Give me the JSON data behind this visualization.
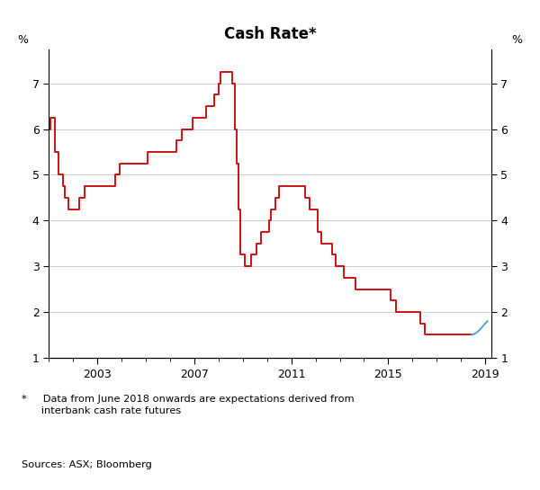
{
  "title": "Cash Rate*",
  "ylabel_left": "%",
  "ylabel_right": "%",
  "ylim": [
    1,
    7.75
  ],
  "yticks": [
    1,
    2,
    3,
    4,
    5,
    6,
    7
  ],
  "xlim_start": 2001.0,
  "xlim_end": 2019.25,
  "xticks": [
    2003,
    2007,
    2011,
    2015,
    2019
  ],
  "footnote1": "*     Data from June 2018 onwards are expectations derived from\n      interbank cash rate futures",
  "footnote2": "Sources: ASX; Bloomberg",
  "red_color": "#CC0000",
  "blue_color": "#5599CC",
  "grid_color": "#CCCCCC",
  "background_color": "#FFFFFF",
  "red_data": [
    [
      2001.0,
      6.0
    ],
    [
      2001.083,
      6.25
    ],
    [
      2001.167,
      6.25
    ],
    [
      2001.25,
      5.5
    ],
    [
      2001.417,
      5.0
    ],
    [
      2001.5,
      5.0
    ],
    [
      2001.583,
      4.75
    ],
    [
      2001.667,
      4.5
    ],
    [
      2001.75,
      4.5
    ],
    [
      2001.833,
      4.25
    ],
    [
      2001.917,
      4.25
    ],
    [
      2002.0,
      4.25
    ],
    [
      2002.083,
      4.25
    ],
    [
      2002.25,
      4.5
    ],
    [
      2002.5,
      4.75
    ],
    [
      2002.833,
      4.75
    ],
    [
      2002.917,
      4.75
    ],
    [
      2003.0,
      4.75
    ],
    [
      2003.5,
      4.75
    ],
    [
      2003.583,
      4.75
    ],
    [
      2003.75,
      5.0
    ],
    [
      2003.917,
      5.25
    ],
    [
      2004.0,
      5.25
    ],
    [
      2004.167,
      5.25
    ],
    [
      2004.333,
      5.25
    ],
    [
      2004.583,
      5.25
    ],
    [
      2004.75,
      5.25
    ],
    [
      2004.917,
      5.25
    ],
    [
      2005.083,
      5.5
    ],
    [
      2005.25,
      5.5
    ],
    [
      2005.5,
      5.5
    ],
    [
      2005.75,
      5.5
    ],
    [
      2005.917,
      5.5
    ],
    [
      2006.0,
      5.5
    ],
    [
      2006.083,
      5.5
    ],
    [
      2006.25,
      5.75
    ],
    [
      2006.5,
      6.0
    ],
    [
      2006.667,
      6.0
    ],
    [
      2006.833,
      6.0
    ],
    [
      2006.917,
      6.25
    ],
    [
      2007.0,
      6.25
    ],
    [
      2007.083,
      6.25
    ],
    [
      2007.167,
      6.25
    ],
    [
      2007.333,
      6.25
    ],
    [
      2007.5,
      6.5
    ],
    [
      2007.667,
      6.5
    ],
    [
      2007.833,
      6.75
    ],
    [
      2007.917,
      6.75
    ],
    [
      2008.0,
      7.0
    ],
    [
      2008.083,
      7.25
    ],
    [
      2008.167,
      7.25
    ],
    [
      2008.25,
      7.25
    ],
    [
      2008.333,
      7.25
    ],
    [
      2008.5,
      7.25
    ],
    [
      2008.583,
      7.0
    ],
    [
      2008.667,
      6.0
    ],
    [
      2008.75,
      5.25
    ],
    [
      2008.833,
      4.25
    ],
    [
      2008.917,
      3.25
    ],
    [
      2009.0,
      3.25
    ],
    [
      2009.083,
      3.0
    ],
    [
      2009.167,
      3.0
    ],
    [
      2009.25,
      3.0
    ],
    [
      2009.333,
      3.25
    ],
    [
      2009.583,
      3.5
    ],
    [
      2009.75,
      3.75
    ],
    [
      2009.833,
      3.75
    ],
    [
      2009.917,
      3.75
    ],
    [
      2010.0,
      3.75
    ],
    [
      2010.083,
      4.0
    ],
    [
      2010.167,
      4.25
    ],
    [
      2010.25,
      4.25
    ],
    [
      2010.333,
      4.5
    ],
    [
      2010.417,
      4.5
    ],
    [
      2010.5,
      4.75
    ],
    [
      2010.75,
      4.75
    ],
    [
      2010.833,
      4.75
    ],
    [
      2010.917,
      4.75
    ],
    [
      2011.0,
      4.75
    ],
    [
      2011.083,
      4.75
    ],
    [
      2011.25,
      4.75
    ],
    [
      2011.333,
      4.75
    ],
    [
      2011.5,
      4.75
    ],
    [
      2011.583,
      4.5
    ],
    [
      2011.75,
      4.25
    ],
    [
      2011.917,
      4.25
    ],
    [
      2012.0,
      4.25
    ],
    [
      2012.083,
      3.75
    ],
    [
      2012.25,
      3.5
    ],
    [
      2012.333,
      3.5
    ],
    [
      2012.417,
      3.5
    ],
    [
      2012.5,
      3.5
    ],
    [
      2012.667,
      3.25
    ],
    [
      2012.833,
      3.0
    ],
    [
      2012.917,
      3.0
    ],
    [
      2013.0,
      3.0
    ],
    [
      2013.083,
      3.0
    ],
    [
      2013.167,
      2.75
    ],
    [
      2013.417,
      2.75
    ],
    [
      2013.5,
      2.75
    ],
    [
      2013.583,
      2.75
    ],
    [
      2013.667,
      2.5
    ],
    [
      2013.75,
      2.5
    ],
    [
      2013.833,
      2.5
    ],
    [
      2013.917,
      2.5
    ],
    [
      2014.0,
      2.5
    ],
    [
      2014.083,
      2.5
    ],
    [
      2014.167,
      2.5
    ],
    [
      2014.25,
      2.5
    ],
    [
      2014.333,
      2.5
    ],
    [
      2014.417,
      2.5
    ],
    [
      2014.5,
      2.5
    ],
    [
      2014.583,
      2.5
    ],
    [
      2014.667,
      2.5
    ],
    [
      2014.75,
      2.5
    ],
    [
      2014.833,
      2.5
    ],
    [
      2014.917,
      2.5
    ],
    [
      2015.0,
      2.5
    ],
    [
      2015.083,
      2.25
    ],
    [
      2015.167,
      2.25
    ],
    [
      2015.25,
      2.25
    ],
    [
      2015.333,
      2.0
    ],
    [
      2015.417,
      2.0
    ],
    [
      2015.5,
      2.0
    ],
    [
      2015.583,
      2.0
    ],
    [
      2015.667,
      2.0
    ],
    [
      2015.75,
      2.0
    ],
    [
      2015.833,
      2.0
    ],
    [
      2015.917,
      2.0
    ],
    [
      2016.0,
      2.0
    ],
    [
      2016.083,
      2.0
    ],
    [
      2016.167,
      2.0
    ],
    [
      2016.25,
      2.0
    ],
    [
      2016.333,
      1.75
    ],
    [
      2016.417,
      1.75
    ],
    [
      2016.5,
      1.5
    ],
    [
      2016.583,
      1.5
    ],
    [
      2016.667,
      1.5
    ],
    [
      2016.75,
      1.5
    ],
    [
      2016.833,
      1.5
    ],
    [
      2016.917,
      1.5
    ],
    [
      2017.0,
      1.5
    ],
    [
      2017.083,
      1.5
    ],
    [
      2017.167,
      1.5
    ],
    [
      2017.25,
      1.5
    ],
    [
      2017.333,
      1.5
    ],
    [
      2017.417,
      1.5
    ],
    [
      2017.5,
      1.5
    ],
    [
      2017.583,
      1.5
    ],
    [
      2017.667,
      1.5
    ],
    [
      2017.75,
      1.5
    ],
    [
      2017.833,
      1.5
    ],
    [
      2017.917,
      1.5
    ],
    [
      2018.0,
      1.5
    ],
    [
      2018.083,
      1.5
    ],
    [
      2018.167,
      1.5
    ],
    [
      2018.25,
      1.5
    ],
    [
      2018.333,
      1.5
    ],
    [
      2018.417,
      1.5
    ]
  ],
  "blue_data": [
    [
      2018.417,
      1.5
    ],
    [
      2018.5,
      1.51
    ],
    [
      2018.583,
      1.53
    ],
    [
      2018.667,
      1.56
    ],
    [
      2018.75,
      1.6
    ],
    [
      2018.833,
      1.65
    ],
    [
      2018.917,
      1.7
    ],
    [
      2019.0,
      1.75
    ],
    [
      2019.083,
      1.8
    ]
  ]
}
